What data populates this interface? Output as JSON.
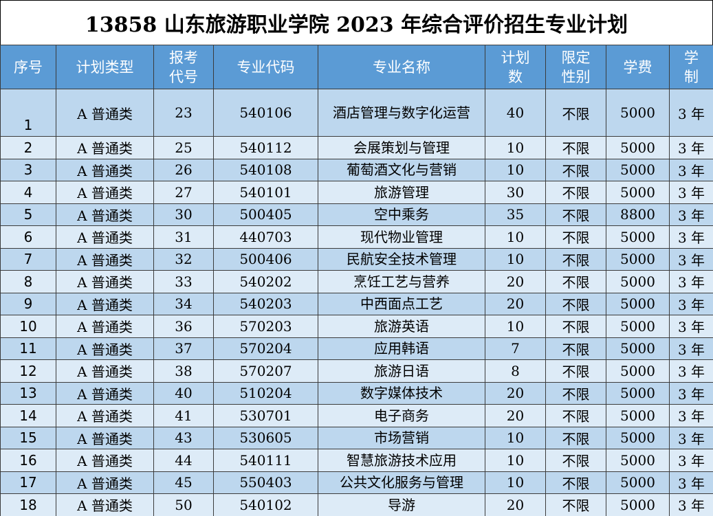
{
  "title": "13858 山东旅游职业学院 2023 年综合评价招生专业计划",
  "headers": {
    "no": "序号",
    "plan_type": "计划类型",
    "apply_code_l1": "报考",
    "apply_code_l2": "代号",
    "major_code": "专业代码",
    "major_name": "专业名称",
    "quota_l1": "计划",
    "quota_l2": "数",
    "gender_l1": "限定",
    "gender_l2": "性别",
    "tuition": "学费",
    "years_l1": "学",
    "years_l2": "制"
  },
  "rows": [
    {
      "no": "1",
      "plan_type": "A 普通类",
      "apply_code": "23",
      "major_code": "540106",
      "major_name": "酒店管理与数字化运营",
      "quota": "40",
      "gender": "不限",
      "tuition": "5000",
      "years": "3 年"
    },
    {
      "no": "2",
      "plan_type": "A 普通类",
      "apply_code": "25",
      "major_code": "540112",
      "major_name": "会展策划与管理",
      "quota": "10",
      "gender": "不限",
      "tuition": "5000",
      "years": "3 年"
    },
    {
      "no": "3",
      "plan_type": "A 普通类",
      "apply_code": "26",
      "major_code": "540108",
      "major_name": "葡萄酒文化与营销",
      "quota": "10",
      "gender": "不限",
      "tuition": "5000",
      "years": "3 年"
    },
    {
      "no": "4",
      "plan_type": "A 普通类",
      "apply_code": "27",
      "major_code": "540101",
      "major_name": "旅游管理",
      "quota": "30",
      "gender": "不限",
      "tuition": "5000",
      "years": "3 年"
    },
    {
      "no": "5",
      "plan_type": "A 普通类",
      "apply_code": "30",
      "major_code": "500405",
      "major_name": "空中乘务",
      "quota": "35",
      "gender": "不限",
      "tuition": "8800",
      "years": "3 年"
    },
    {
      "no": "6",
      "plan_type": "A 普通类",
      "apply_code": "31",
      "major_code": "440703",
      "major_name": "现代物业管理",
      "quota": "10",
      "gender": "不限",
      "tuition": "5000",
      "years": "3 年"
    },
    {
      "no": "7",
      "plan_type": "A 普通类",
      "apply_code": "32",
      "major_code": "500406",
      "major_name": "民航安全技术管理",
      "quota": "10",
      "gender": "不限",
      "tuition": "5000",
      "years": "3 年"
    },
    {
      "no": "8",
      "plan_type": "A 普通类",
      "apply_code": "33",
      "major_code": "540202",
      "major_name": "烹饪工艺与营养",
      "quota": "20",
      "gender": "不限",
      "tuition": "5000",
      "years": "3 年"
    },
    {
      "no": "9",
      "plan_type": "A 普通类",
      "apply_code": "34",
      "major_code": "540203",
      "major_name": "中西面点工艺",
      "quota": "20",
      "gender": "不限",
      "tuition": "5000",
      "years": "3 年"
    },
    {
      "no": "10",
      "plan_type": "A 普通类",
      "apply_code": "36",
      "major_code": "570203",
      "major_name": "旅游英语",
      "quota": "10",
      "gender": "不限",
      "tuition": "5000",
      "years": "3 年"
    },
    {
      "no": "11",
      "plan_type": "A 普通类",
      "apply_code": "37",
      "major_code": "570204",
      "major_name": "应用韩语",
      "quota": "7",
      "gender": "不限",
      "tuition": "5000",
      "years": "3 年"
    },
    {
      "no": "12",
      "plan_type": "A 普通类",
      "apply_code": "38",
      "major_code": "570207",
      "major_name": "旅游日语",
      "quota": "8",
      "gender": "不限",
      "tuition": "5000",
      "years": "3 年"
    },
    {
      "no": "13",
      "plan_type": "A 普通类",
      "apply_code": "40",
      "major_code": "510204",
      "major_name": "数字媒体技术",
      "quota": "20",
      "gender": "不限",
      "tuition": "5000",
      "years": "3 年"
    },
    {
      "no": "14",
      "plan_type": "A 普通类",
      "apply_code": "41",
      "major_code": "530701",
      "major_name": "电子商务",
      "quota": "20",
      "gender": "不限",
      "tuition": "5000",
      "years": "3 年"
    },
    {
      "no": "15",
      "plan_type": "A 普通类",
      "apply_code": "43",
      "major_code": "530605",
      "major_name": "市场营销",
      "quota": "10",
      "gender": "不限",
      "tuition": "5000",
      "years": "3 年"
    },
    {
      "no": "16",
      "plan_type": "A 普通类",
      "apply_code": "44",
      "major_code": "540111",
      "major_name": "智慧旅游技术应用",
      "quota": "10",
      "gender": "不限",
      "tuition": "5000",
      "years": "3 年"
    },
    {
      "no": "17",
      "plan_type": "A 普通类",
      "apply_code": "45",
      "major_code": "550403",
      "major_name": "公共文化服务与管理",
      "quota": "10",
      "gender": "不限",
      "tuition": "5000",
      "years": "3 年"
    },
    {
      "no": "18",
      "plan_type": "A 普通类",
      "apply_code": "50",
      "major_code": "540102",
      "major_name": "导游",
      "quota": "20",
      "gender": "不限",
      "tuition": "5000",
      "years": "3 年"
    }
  ],
  "colors": {
    "header_bg": "#5b9bd5",
    "header_text": "#ffffff",
    "row_band_dark": "#bdd7ee",
    "row_band_light": "#ddebf7"
  }
}
